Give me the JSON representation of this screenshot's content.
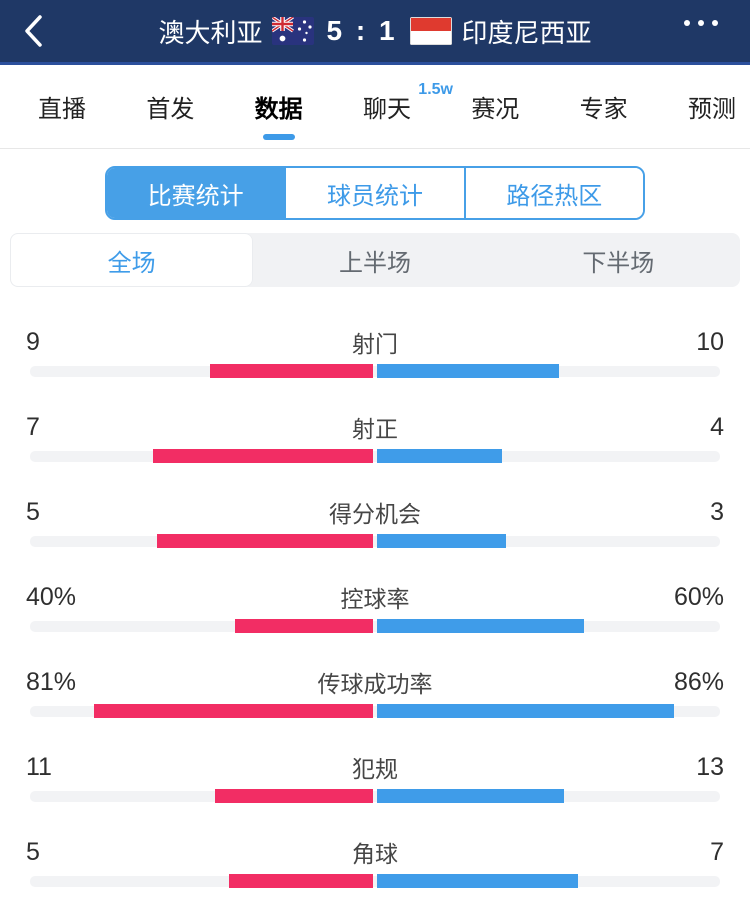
{
  "header": {
    "home_team": "澳大利亚",
    "away_team": "印度尼西亚",
    "score": "5 : 1",
    "back_icon": "chevron-left",
    "more_icon": "ellipsis",
    "colors": {
      "bg": "#1f3866",
      "bottom_line": "#2b4f9c"
    }
  },
  "tabs": {
    "items": [
      {
        "key": "live",
        "label": "直播",
        "active": false,
        "badge": ""
      },
      {
        "key": "lineup",
        "label": "首发",
        "active": false,
        "badge": ""
      },
      {
        "key": "data",
        "label": "数据",
        "active": true,
        "badge": ""
      },
      {
        "key": "chat",
        "label": "聊天",
        "active": false,
        "badge": "1.5w"
      },
      {
        "key": "status",
        "label": "赛况",
        "active": false,
        "badge": ""
      },
      {
        "key": "expert",
        "label": "专家",
        "active": false,
        "badge": ""
      },
      {
        "key": "predict",
        "label": "预测",
        "active": false,
        "badge": ""
      }
    ],
    "accent": "#3d9ae8"
  },
  "segments": {
    "items": [
      {
        "key": "match-stats",
        "label": "比赛统计",
        "active": true
      },
      {
        "key": "player-stats",
        "label": "球员统计",
        "active": false
      },
      {
        "key": "heat-map",
        "label": "路径热区",
        "active": false
      }
    ],
    "accent": "#47a0e7"
  },
  "periods": {
    "items": [
      {
        "key": "full",
        "label": "全场",
        "active": true
      },
      {
        "key": "first-half",
        "label": "上半场",
        "active": false
      },
      {
        "key": "second-half",
        "label": "下半场",
        "active": false
      }
    ]
  },
  "chart_data": {
    "type": "bar",
    "title": "比赛统计 - 全场",
    "home_team": "澳大利亚",
    "away_team": "印度尼西亚",
    "home_color": "#f22d64",
    "away_color": "#3f9ce9",
    "track_color": "#f2f3f5",
    "layout": "diverging-from-center, count rows scaled by value/(home+away), percent rows scaled by value/100",
    "rows": [
      {
        "label": "射门",
        "home": "9",
        "away": "10"
      },
      {
        "label": "射正",
        "home": "7",
        "away": "4"
      },
      {
        "label": "得分机会",
        "home": "5",
        "away": "3"
      },
      {
        "label": "控球率",
        "home": "40%",
        "away": "60%"
      },
      {
        "label": "传球成功率",
        "home": "81%",
        "away": "86%"
      },
      {
        "label": "犯规",
        "home": "11",
        "away": "13"
      },
      {
        "label": "角球",
        "home": "5",
        "away": "7"
      }
    ]
  }
}
